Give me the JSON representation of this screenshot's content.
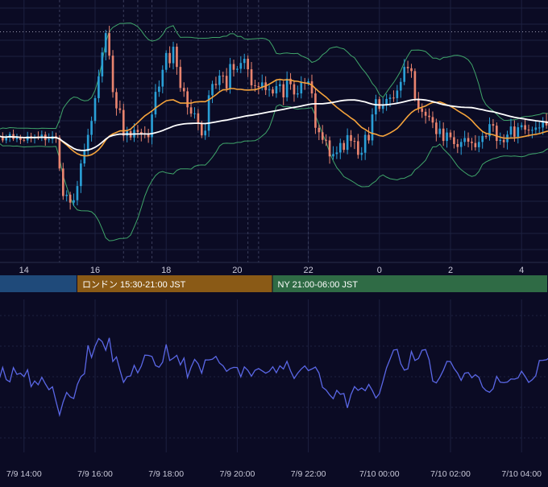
{
  "colors": {
    "background": "#0b0b24",
    "grid": "#1d2140",
    "session_divider": "#3a3e5c",
    "candle_up": "#2a9fd6",
    "candle_down": "#e9846f",
    "bollinger": "#3fa56a",
    "ma_fast": "#f5a33b",
    "ma_slow": "#ffffff",
    "oscillator": "#5a67e6",
    "session_tokyo": "#1f4a7a",
    "session_london": "#8a5a16",
    "session_ny": "#2f6b45",
    "price_line": "#9a9ab0"
  },
  "sessions": [
    {
      "label": "",
      "color_key": "session_tokyo"
    },
    {
      "label": "ロンドン 15:30-21:00 JST",
      "color_key": "session_london"
    },
    {
      "label": "NY 21:00-06:00 JST",
      "color_key": "session_ny"
    }
  ],
  "main_axis_ticks": [
    "14",
    "16",
    "18",
    "20",
    "22",
    "0",
    "2",
    "4"
  ],
  "bottom_axis_ticks": [
    "7/9 14:00",
    "7/9 16:00",
    "7/9 18:00",
    "7/9 20:00",
    "7/9 22:00",
    "7/10 00:00",
    "7/10 02:00",
    "7/10 04:00"
  ],
  "chart_data": [
    {
      "type": "candlestick",
      "x_unit": "hour (JST)",
      "x_start": 13.0,
      "bar_interval_hours": 0.1,
      "ylim": [
        0,
        100
      ],
      "close": [
        48.6,
        48.1,
        47.7,
        48.1,
        46.5,
        47.5,
        48.9,
        47.0,
        47.6,
        46.7,
        46.5,
        48.1,
        47.4,
        47.9,
        47.8,
        48.7,
        46.6,
        46.9,
        48.1,
        47.6,
        35.8,
        25.3,
        25.8,
        22.8,
        23.7,
        29.1,
        37.7,
        42.4,
        48.6,
        53.9,
        62.6,
        70.9,
        80.0,
        87.4,
        78.8,
        64.9,
        58.7,
        58.1,
        48.3,
        50.0,
        47.6,
        50.5,
        49.7,
        49.1,
        48.8,
        47.7,
        56.4,
        65.0,
        67.0,
        73.4,
        79.8,
        75.9,
        82.2,
        74.5,
        66.5,
        65.2,
        59.1,
        56.7,
        56.8,
        52.9,
        48.4,
        50.2,
        63.7,
        68.0,
        67.6,
        71.2,
        71.1,
        66.2,
        75.6,
        73.4,
        73.8,
        76.0,
        77.6,
        73.6,
        67.5,
        67.2,
        66.8,
        68.6,
        65.7,
        65.9,
        64.4,
        67.2,
        67.9,
        62.9,
        70.0,
        67.9,
        64.0,
        64.4,
        68.6,
        68.3,
        69.0,
        64.4,
        51.3,
        49.6,
        46.7,
        46.5,
        40.4,
        41.3,
        41.9,
        45.5,
        42.9,
        48.5,
        46.3,
        46.2,
        41.0,
        41.8,
        48.6,
        46.5,
        56.4,
        62.2,
        58.5,
        60.1,
        62.3,
        62.8,
        62.6,
        65.5,
        68.8,
        74.5,
        74.0,
        72.9,
        62.4,
        58.7,
        57.4,
        55.9,
        55.4,
        53.3,
        48.9,
        51.0,
        46.3,
        49.5,
        47.7,
        45.1,
        44.0,
        45.9,
        47.4,
        46.0,
        45.5,
        43.9,
        45.9,
        48.2,
        48.1,
        52.7,
        52.1,
        46.3,
        46.7,
        45.8,
        48.7,
        51.8,
        47.9,
        51.5,
        52.3,
        50.6,
        50.3,
        50.5,
        51.4,
        51.4,
        53.9,
        52.2,
        51.2,
        53.1,
        52.7,
        49.8,
        51.4,
        50.4
      ],
      "volatility_pct": [
        1.2,
        1.3,
        1.3,
        1.4,
        1.4,
        1.4,
        1.5,
        1.5,
        1.6,
        1.6,
        1.6,
        1.7,
        1.8,
        1.8,
        1.9,
        1.9,
        2.0,
        2.0,
        2.1,
        2.1,
        2.2,
        2.2,
        2.3,
        2.3,
        2.4,
        2.4,
        2.5,
        2.5,
        2.6,
        2.6,
        2.6,
        2.6,
        2.6,
        2.6,
        2.6,
        2.6,
        2.6,
        2.6,
        2.6,
        2.6,
        2.6,
        2.6,
        2.6,
        2.6,
        2.6,
        2.6,
        2.6,
        2.6,
        2.6,
        2.6,
        2.6,
        2.6,
        2.6,
        2.6,
        2.6,
        2.6,
        2.6,
        2.6,
        2.6,
        2.6,
        2.6,
        2.6,
        2.6,
        2.6,
        2.6,
        2.6,
        2.6,
        2.6,
        2.6,
        2.6,
        2.6,
        2.6,
        2.6,
        2.6,
        2.6,
        2.6,
        2.6,
        2.6,
        2.6,
        2.6,
        2.6,
        2.6,
        2.6,
        2.6,
        2.6,
        2.6,
        2.6,
        2.6,
        2.6,
        2.6,
        2.6,
        2.6,
        2.6,
        2.6,
        2.6,
        2.6,
        2.6,
        2.6,
        2.6,
        2.6,
        2.6,
        2.6,
        2.6,
        2.6,
        2.6,
        2.6,
        2.6,
        2.6,
        2.6,
        2.6,
        2.6,
        2.6,
        2.6,
        2.6,
        2.6,
        2.6,
        2.6,
        2.6,
        2.6,
        2.6,
        2.6,
        2.6,
        2.6,
        2.6,
        2.6,
        2.6,
        2.6,
        2.6,
        2.6,
        2.6,
        2.6,
        2.6,
        2.6,
        2.6,
        2.6,
        2.6,
        2.6,
        2.6,
        2.6,
        2.6,
        2.6,
        2.6,
        2.6,
        2.6,
        2.6,
        2.6,
        2.6,
        2.6,
        2.6,
        2.6,
        2.6,
        2.6,
        2.6,
        2.6,
        2.6,
        2.6,
        2.6,
        2.6,
        2.6,
        2.6,
        2.6,
        2.6,
        2.6,
        2.6,
        2.6,
        2.6,
        2.6,
        2.6,
        2.6,
        2.6
      ],
      "ma_fast_period_bars": 20,
      "ma_slow_period_bars": 75,
      "bollinger_period_bars": 20,
      "bollinger_sigma": 2,
      "horizontal_reference_level": 87.9,
      "session_starts_hour": [
        13.0,
        15.5,
        21.0
      ],
      "grid": true
    },
    {
      "type": "line",
      "x_unit": "hour (JST)",
      "x_start": 13.0,
      "x_step_hours": 0.1,
      "ylim": [
        0,
        100
      ],
      "values": [
        56.5,
        47.3,
        48.4,
        47.6,
        55.6,
        47.6,
        46.1,
        55.4,
        51.0,
        51.8,
        49.5,
        54.0,
        43.0,
        46.7,
        44.2,
        49.1,
        44.8,
        41.0,
        42.9,
        33.4,
        24.4,
        32.9,
        39.2,
        36.3,
        35.2,
        44.4,
        49.5,
        51.4,
        70.0,
        62.1,
        69.4,
        74.4,
        72.4,
        66.8,
        74.9,
        59.4,
        62.4,
        53.7,
        45.8,
        49.5,
        50.0,
        56.9,
        52.0,
        56.4,
        63.6,
        63.4,
        62.7,
        56.8,
        55.7,
        59.0,
        70.6,
        60.1,
        61.6,
        63.5,
        57.2,
        61.7,
        49.0,
        55.7,
        60.8,
        57.9,
        51.8,
        60.4,
        60.5,
        60.9,
        62.8,
        58.4,
        56.6,
        53.0,
        54.8,
        55.6,
        55.5,
        49.4,
        55.9,
        53.6,
        49.8,
        53.7,
        54.8,
        53.3,
        51.8,
        53.0,
        56.0,
        52.1,
        56.6,
        54.5,
        59.5,
        53.2,
        48.3,
        51.8,
        54.5,
        56.5,
        53.5,
        54.5,
        55.8,
        51.9,
        42.6,
        40.8,
        37.6,
        35.1,
        40.6,
        38.0,
        38.5,
        29.1,
        37.8,
        43.0,
        40.6,
        42.1,
        40.3,
        44.4,
        40.5,
        35.6,
        38.4,
        46.5,
        55.2,
        61.0,
        66.9,
        67.3,
        58.0,
        53.8,
        54.6,
        66.0,
        60.1,
        61.4,
        66.8,
        67.2,
        60.6,
        46.6,
        45.4,
        49.1,
        53.8,
        59.5,
        59.3,
        54.9,
        51.8,
        47.1,
        51.8,
        52.2,
        48.8,
        50.8,
        49.0,
        42.8,
        40.4,
        39.3,
        41.7,
        49.7,
        45.9,
        45.6,
        46.0,
        48.0,
        47.9,
        48.7,
        53.1,
        49.7,
        45.8,
        47.5,
        50.1,
        60.1,
        60.2,
        60.6,
        62.2,
        55.5,
        54.0,
        57.2,
        58.2,
        57.4,
        60.9,
        59.3,
        58.0,
        60.1,
        57.3,
        55.7
      ],
      "grid": true
    }
  ]
}
